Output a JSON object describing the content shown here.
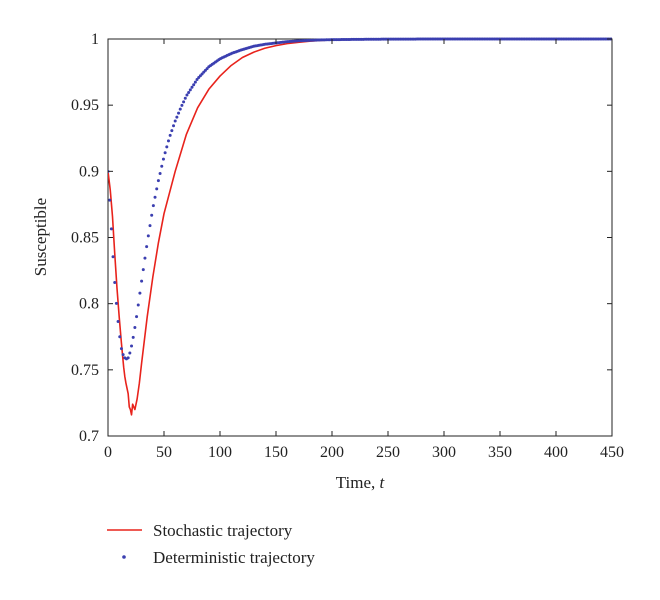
{
  "chart_data": {
    "type": "line",
    "xlabel_prefix": "Time, ",
    "xlabel_var": "t",
    "ylabel": "Susceptible",
    "xlim": [
      0,
      450
    ],
    "ylim": [
      0.7,
      1
    ],
    "xticks": [
      0,
      50,
      100,
      150,
      200,
      250,
      300,
      350,
      400,
      450
    ],
    "yticks": [
      0.7,
      0.75,
      0.8,
      0.85,
      0.9,
      0.95,
      1
    ],
    "ytick_labels": [
      "0.7",
      "0.75",
      "0.8",
      "0.85",
      "0.9",
      "0.95",
      "1"
    ],
    "grid": false,
    "legend_position": "bottom-left, below plot",
    "series": [
      {
        "name": "Stochastic trajectory",
        "style": "line",
        "color": "#e8231c",
        "x": [
          0,
          2,
          4,
          6,
          8,
          10,
          12,
          14,
          15,
          16,
          18,
          19,
          20,
          21,
          22,
          24,
          26,
          28,
          30,
          35,
          40,
          45,
          50,
          60,
          70,
          80,
          90,
          100,
          110,
          120,
          130,
          140,
          150,
          160,
          170,
          180,
          190,
          200,
          220,
          250,
          300,
          350,
          400,
          450
        ],
        "y": [
          0.9,
          0.886,
          0.866,
          0.838,
          0.812,
          0.79,
          0.77,
          0.752,
          0.745,
          0.74,
          0.732,
          0.722,
          0.72,
          0.716,
          0.724,
          0.72,
          0.728,
          0.74,
          0.755,
          0.79,
          0.82,
          0.846,
          0.868,
          0.9,
          0.928,
          0.948,
          0.962,
          0.972,
          0.98,
          0.986,
          0.99,
          0.993,
          0.995,
          0.9965,
          0.9975,
          0.9983,
          0.9989,
          0.9993,
          0.9996,
          0.9998,
          1.0,
          1.0,
          1.0,
          1.0
        ]
      },
      {
        "name": "Deterministic trajectory",
        "style": "dots",
        "color": "#3b3fb0",
        "x": [
          0,
          2,
          4,
          6,
          8,
          10,
          12,
          14,
          16,
          18,
          20,
          22,
          24,
          26,
          28,
          30,
          35,
          40,
          45,
          50,
          55,
          60,
          65,
          70,
          80,
          90,
          100,
          110,
          120,
          130,
          140,
          150,
          160,
          170,
          180,
          190,
          200,
          220,
          250,
          300,
          350,
          400,
          450
        ],
        "y": [
          0.9,
          0.871,
          0.842,
          0.816,
          0.795,
          0.778,
          0.766,
          0.76,
          0.758,
          0.759,
          0.764,
          0.772,
          0.782,
          0.793,
          0.805,
          0.817,
          0.846,
          0.872,
          0.893,
          0.911,
          0.926,
          0.938,
          0.948,
          0.957,
          0.97,
          0.979,
          0.985,
          0.989,
          0.992,
          0.9945,
          0.996,
          0.997,
          0.998,
          0.9986,
          0.999,
          0.9993,
          0.9995,
          0.9997,
          0.9999,
          1.0,
          1.0,
          1.0,
          1.0
        ]
      }
    ]
  }
}
